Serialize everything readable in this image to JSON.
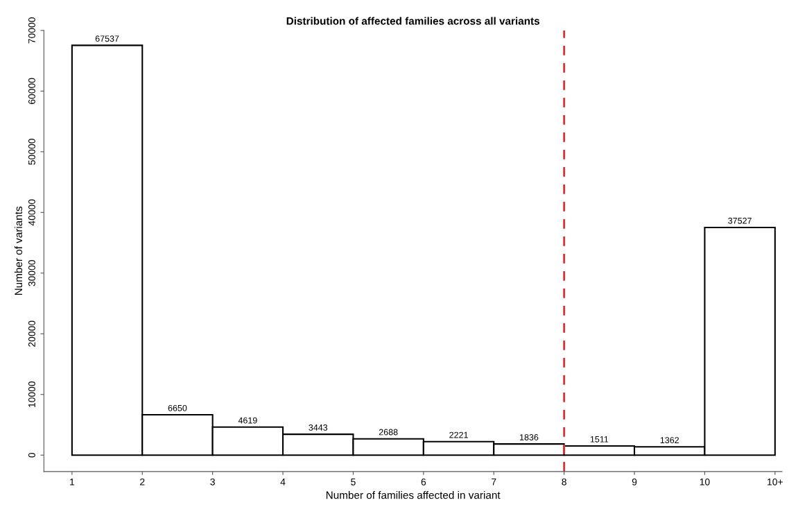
{
  "chart_data": {
    "type": "histogram",
    "title": "Distribution of affected families across all variants",
    "xlabel": "Number of families affected in variant",
    "ylabel": "Number of variants",
    "bins": [
      1,
      2,
      3,
      4,
      5,
      6,
      7,
      8,
      9,
      10,
      11
    ],
    "values": [
      67537,
      6650,
      4619,
      3443,
      2688,
      2221,
      1836,
      1511,
      1362,
      37527
    ],
    "color": "#ffffff",
    "data_labels": true,
    "xlim": [
      0.6,
      11.1
    ],
    "ylim": [
      -2700,
      70000
    ],
    "xticks": [
      1,
      2,
      3,
      4,
      5,
      6,
      7,
      8,
      9,
      10,
      {
        "value": 11,
        "label": "10+"
      }
    ],
    "yticks": [
      0,
      10000,
      20000,
      30000,
      40000,
      50000,
      60000,
      70000
    ],
    "ref_lines": [
      {
        "axis": "x",
        "value": 8,
        "color": "#e03030",
        "line_style": "dashed"
      }
    ]
  }
}
